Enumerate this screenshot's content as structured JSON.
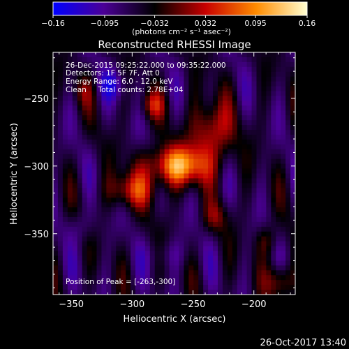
{
  "chart_data": {
    "type": "heatmap",
    "title": "Reconstructed RHESSI Image",
    "colorbar": {
      "ticks": [
        "-0.16",
        "-0.095",
        "-0.032",
        "0.032",
        "0.095",
        "0.16"
      ],
      "unit_label": "(photons cm⁻² s⁻¹ asec⁻²)",
      "range": [
        -0.16,
        0.16
      ],
      "colors": [
        "#0000ff",
        "#4b0096",
        "#000000",
        "#c80000",
        "#ff8c00",
        "#ffffd2"
      ]
    },
    "info_lines": [
      "26-Dec-2015 09:25:22.000 to 09:35:22.000",
      "Detectors: 1F 5F 7F, Att 0",
      "Energy Range: 6.0 - 12.0 keV",
      "Clean     Total counts: 2.78E+04"
    ],
    "peak_label": "Position of Peak = [-263,-300]",
    "xlabel": "Heliocentric X (arcsec)",
    "ylabel": "Heliocentric Y (arcsec)",
    "xlim": [
      -365,
      -166
    ],
    "ylim": [
      -395,
      -216
    ],
    "xticks": [
      {
        "value": -350,
        "label": "-350"
      },
      {
        "value": -300,
        "label": "-300"
      },
      {
        "value": -250,
        "label": "-250"
      },
      {
        "value": -200,
        "label": "-200"
      }
    ],
    "yticks": [
      {
        "value": -250,
        "label": "-250"
      },
      {
        "value": -300,
        "label": "-300"
      },
      {
        "value": -350,
        "label": "-350"
      }
    ],
    "peak": {
      "x": -263,
      "y": -300
    },
    "sources": [
      {
        "x": -263,
        "y": -300,
        "amp": 0.16,
        "sx": 18,
        "sy": 10
      },
      {
        "x": -235,
        "y": -275,
        "amp": 0.1,
        "sx": 12,
        "sy": 16
      },
      {
        "x": -300,
        "y": -318,
        "amp": 0.09,
        "sx": 14,
        "sy": 9
      },
      {
        "x": -283,
        "y": -255,
        "amp": 0.07,
        "sx": 7,
        "sy": 7
      },
      {
        "x": -232,
        "y": -338,
        "amp": 0.05,
        "sx": 7,
        "sy": 8
      },
      {
        "x": -190,
        "y": -355,
        "amp": 0.05,
        "sx": 6,
        "sy": 8
      },
      {
        "x": -178,
        "y": -385,
        "amp": 0.08,
        "sx": 8,
        "sy": 9
      },
      {
        "x": -340,
        "y": -245,
        "amp": 0.04,
        "sx": 6,
        "sy": 8
      },
      {
        "x": -315,
        "y": -240,
        "amp": -0.05,
        "sx": 8,
        "sy": 8
      },
      {
        "x": -342,
        "y": -345,
        "amp": -0.03,
        "sx": 9,
        "sy": 9
      },
      {
        "x": -270,
        "y": -365,
        "amp": -0.03,
        "sx": 12,
        "sy": 8
      }
    ]
  },
  "footer": {
    "date": "26-Oct-2017 13:40"
  }
}
